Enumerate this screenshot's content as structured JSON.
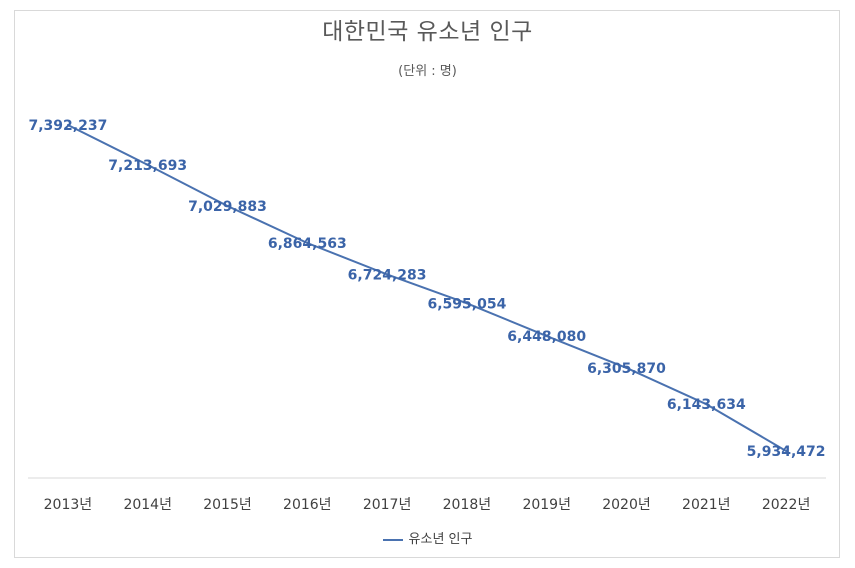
{
  "chart_data": {
    "type": "line",
    "title": "대한민국 유소년 인구",
    "subtitle": "(단위 : 명)",
    "categories": [
      "2013년",
      "2014년",
      "2015년",
      "2016년",
      "2017년",
      "2018년",
      "2019년",
      "2020년",
      "2021년",
      "2022년"
    ],
    "series": [
      {
        "name": "유소년 인구",
        "values": [
          7392237,
          7213693,
          7029883,
          6864563,
          6724283,
          6595054,
          6448080,
          6305870,
          6143634,
          5934472
        ],
        "labels": [
          "7,392,237",
          "7,213,693",
          "7,029,883",
          "6,864,563",
          "6,724,283",
          "6,595,054",
          "6,448,080",
          "6,305,870",
          "6,143,634",
          "5,934,472"
        ]
      }
    ],
    "ylim": [
      5780000,
      7480000
    ],
    "grid": false,
    "y_axis_visible": false,
    "data_labels": true,
    "legend_position": "bottom",
    "colors": {
      "line": "#4a72b0",
      "label": "#3b64a8",
      "axis": "#d9d9d9",
      "tick": "#404040"
    }
  }
}
